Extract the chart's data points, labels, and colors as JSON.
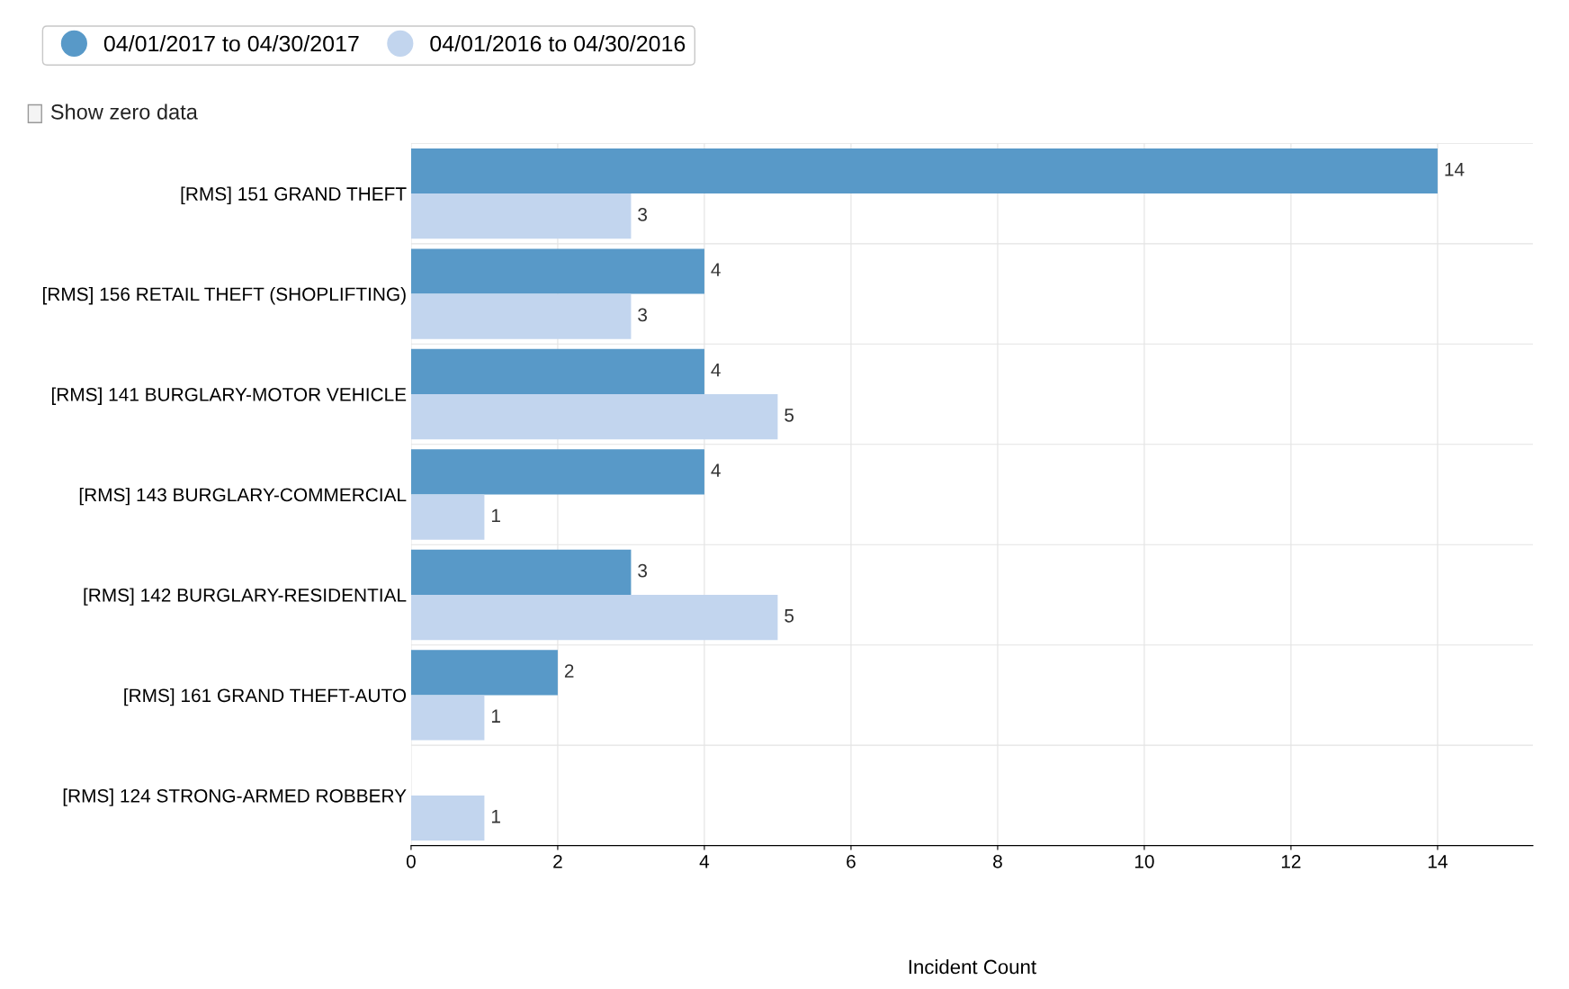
{
  "chart_data": {
    "type": "bar",
    "orientation": "horizontal",
    "xlabel": "Incident Count",
    "categories": [
      "[RMS] 151 GRAND THEFT",
      "[RMS] 156 RETAIL THEFT (SHOPLIFTING)",
      "[RMS] 141 BURGLARY-MOTOR VEHICLE",
      "[RMS] 143 BURGLARY-COMMERCIAL",
      "[RMS] 142 BURGLARY-RESIDENTIAL",
      "[RMS] 161 GRAND THEFT-AUTO",
      "[RMS] 124 STRONG-ARMED ROBBERY"
    ],
    "series": [
      {
        "name": "04/01/2017 to 04/30/2017",
        "color": "#5899c8",
        "values": [
          14,
          4,
          4,
          4,
          3,
          2,
          null
        ]
      },
      {
        "name": "04/01/2016 to 04/30/2016",
        "color": "#c2d5ee",
        "values": [
          3,
          3,
          5,
          1,
          5,
          1,
          1
        ]
      }
    ],
    "xlim": [
      0,
      15.3
    ],
    "xticks": [
      0,
      2,
      4,
      6,
      8,
      10,
      12,
      14
    ],
    "grid": true,
    "legend": "top left",
    "data_labels": true,
    "annotations": [
      "Show zero data"
    ]
  }
}
